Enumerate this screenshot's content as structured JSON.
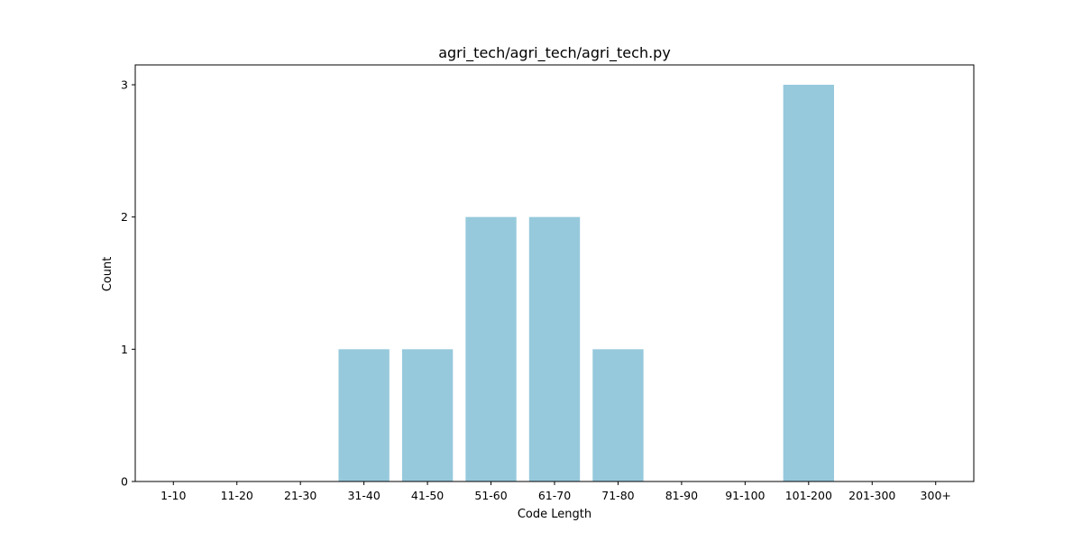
{
  "chart_data": {
    "type": "bar",
    "title": "agri_tech/agri_tech/agri_tech.py",
    "xlabel": "Code Length",
    "ylabel": "Count",
    "categories": [
      "1-10",
      "11-20",
      "21-30",
      "31-40",
      "41-50",
      "51-60",
      "61-70",
      "71-80",
      "81-90",
      "91-100",
      "101-200",
      "201-300",
      "300+"
    ],
    "values": [
      0,
      0,
      0,
      1,
      1,
      2,
      2,
      1,
      0,
      0,
      3,
      0,
      0
    ],
    "yticks": [
      0,
      1,
      2,
      3
    ],
    "ylim": [
      0,
      3.15
    ],
    "bar_color": "#96c9dc",
    "grid": false,
    "legend": "none"
  }
}
